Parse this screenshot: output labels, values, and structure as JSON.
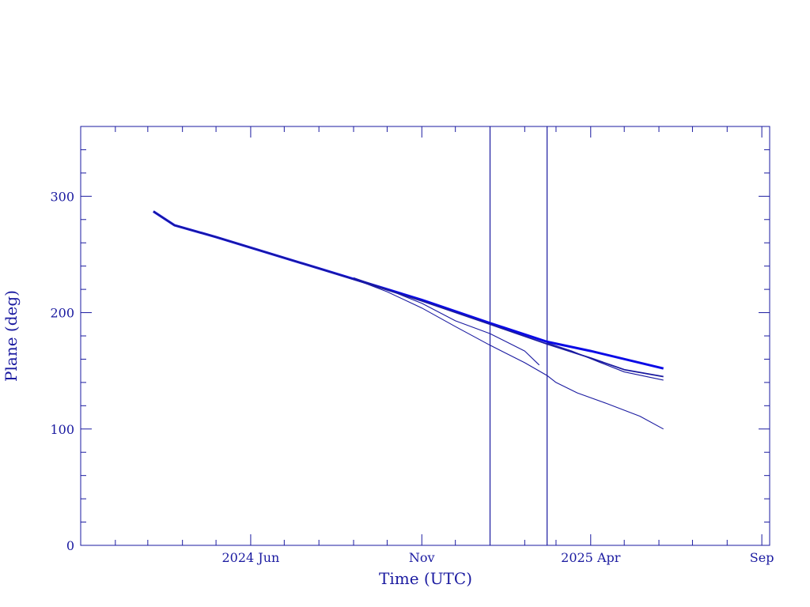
{
  "chart_data": {
    "type": "line",
    "xlabel": "Time (UTC)",
    "ylabel": "Plane (deg)",
    "x_tick_labels": [
      "2024 Jun",
      "Nov",
      "2025 Apr",
      "Sep"
    ],
    "x_tick_dates": [
      "2024-06-01",
      "2024-11-01",
      "2025-04-01",
      "2025-09-01"
    ],
    "xlim": [
      "2024-01-01",
      "2025-09-08"
    ],
    "ylim": [
      0,
      360
    ],
    "y_ticks": [
      0,
      100,
      200,
      300
    ],
    "grid": false,
    "legend": "none",
    "vertical_markers": [
      "2025-01-01",
      "2025-02-21"
    ],
    "series": [
      {
        "x": [
          "2024-03-06",
          "2024-03-25",
          "2024-05-01",
          "2024-08-01",
          "2024-11-01",
          "2025-01-01",
          "2025-02-21",
          "2025-04-01",
          "2025-06-05"
        ],
        "y": [
          287,
          275,
          265,
          238,
          211,
          191,
          175,
          167,
          152
        ]
      },
      {
        "x": [
          "2024-03-06",
          "2024-03-25",
          "2024-05-01",
          "2024-08-01",
          "2024-11-01",
          "2025-01-01",
          "2025-02-21",
          "2025-04-01",
          "2025-05-01",
          "2025-06-05"
        ],
        "y": [
          287,
          275,
          265,
          238,
          210,
          190,
          173,
          161,
          151,
          145
        ]
      },
      {
        "x": [
          "2024-09-01",
          "2024-10-01",
          "2024-11-01",
          "2024-12-01",
          "2025-01-01",
          "2025-02-01",
          "2025-02-14"
        ],
        "y": [
          230,
          220,
          208,
          193,
          182,
          167,
          155
        ]
      },
      {
        "x": [
          "2024-09-01",
          "2024-10-01",
          "2024-11-01",
          "2024-12-01",
          "2025-01-01",
          "2025-02-01",
          "2025-02-21",
          "2025-03-01",
          "2025-03-20",
          "2025-04-15",
          "2025-05-15",
          "2025-06-05"
        ],
        "y": [
          229,
          218,
          204,
          188,
          172,
          157,
          146,
          140,
          131,
          122,
          111,
          100
        ]
      },
      {
        "x": [
          "2025-02-21",
          "2025-03-15",
          "2025-04-10",
          "2025-05-01",
          "2025-06-05"
        ],
        "y": [
          174,
          167,
          157,
          149,
          142
        ]
      }
    ]
  }
}
